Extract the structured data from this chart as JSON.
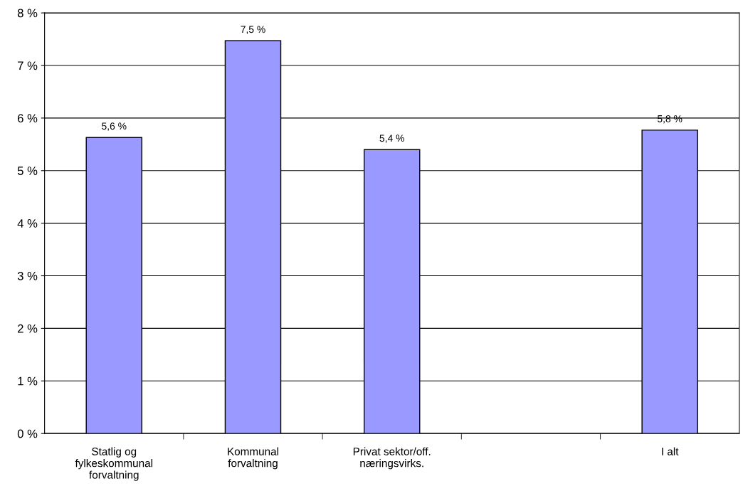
{
  "chart_data": {
    "type": "bar",
    "categories": [
      "Statlig og\nfylkeskommunal\nforvaltning",
      "Kommunal\nforvaltning",
      "Privat sektor/off.\nnæringsvirks.",
      null,
      "I alt"
    ],
    "values": [
      5.63,
      7.47,
      5.4,
      null,
      5.77
    ],
    "value_labels": [
      "5,6 %",
      "7,5 %",
      "5,4 %",
      null,
      "5,8 %"
    ],
    "color": "#9999ff",
    "ylim": [
      0,
      8
    ],
    "yticks": [
      {
        "value": 0,
        "label": "0 %"
      },
      {
        "value": 1,
        "label": "1 %"
      },
      {
        "value": 2,
        "label": "2 %"
      },
      {
        "value": 3,
        "label": "3 %"
      },
      {
        "value": 4,
        "label": "4 %"
      },
      {
        "value": 5,
        "label": "5 %"
      },
      {
        "value": 6,
        "label": "6 %"
      },
      {
        "value": 7,
        "label": "7 %"
      },
      {
        "value": 8,
        "label": "8 %"
      }
    ],
    "grid": "y",
    "legend": false
  }
}
